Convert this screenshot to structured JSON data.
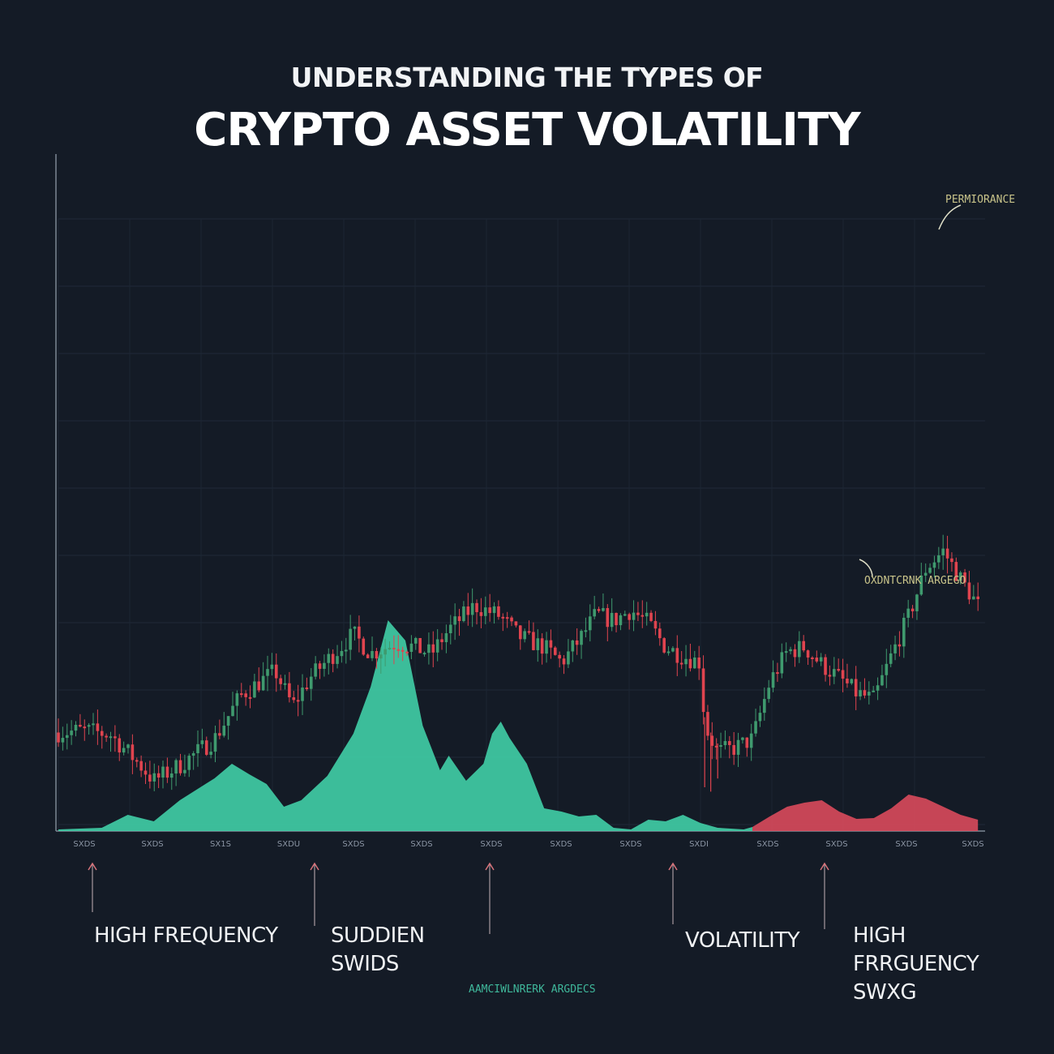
{
  "title": {
    "line1": "UNDERSTANDING THE TYPES OF",
    "line2": "CRYPTO ASSET VOLATILITY"
  },
  "annotations": {
    "top_right": "PERMIORANCE",
    "mid_right": "OXDNTCRNK ARGEGO",
    "bottom": "AAMCIWLNRERK ARGDECS"
  },
  "categories": [
    {
      "label": "HIGH FREQUENCY"
    },
    {
      "label": "SUDDIEN\nSWIDS"
    },
    {
      "label": "VOLATILITY"
    },
    {
      "label": "HIGH\nFRRGUENCY\nSWXG"
    }
  ],
  "colors": {
    "background": "#141b26",
    "up": "#3f9a6e",
    "down": "#e0444f",
    "volume_teal": "#3fc9a4",
    "volume_red": "#d94a5c",
    "arrow": "#d9727a"
  },
  "chart_data": {
    "type": "candlestick",
    "grid": true,
    "x_tick_labels": [
      "SXDS",
      "SXDS",
      "SX1S",
      "SXDU",
      "SXDS",
      "SXDS",
      "SXDS",
      "SXDS",
      "SXDS",
      "SXDI",
      "SXDS",
      "SXDS",
      "SXDS",
      "SXDS"
    ],
    "price_path": [
      [
        0,
        45
      ],
      [
        0.03,
        46
      ],
      [
        0.06,
        44
      ],
      [
        0.09,
        32
      ],
      [
        0.11,
        23
      ],
      [
        0.14,
        30
      ],
      [
        0.18,
        42
      ],
      [
        0.21,
        62
      ],
      [
        0.25,
        73
      ],
      [
        0.27,
        57
      ],
      [
        0.29,
        70
      ],
      [
        0.32,
        82
      ],
      [
        0.34,
        90
      ],
      [
        0.36,
        81
      ],
      [
        0.39,
        86
      ],
      [
        0.41,
        84
      ],
      [
        0.43,
        81
      ],
      [
        0.45,
        92
      ],
      [
        0.48,
        103
      ],
      [
        0.51,
        98
      ],
      [
        0.53,
        89
      ],
      [
        0.56,
        84
      ],
      [
        0.58,
        77
      ],
      [
        0.6,
        87
      ],
      [
        0.62,
        99
      ],
      [
        0.64,
        96
      ],
      [
        0.66,
        101
      ],
      [
        0.68,
        95
      ],
      [
        0.7,
        84
      ],
      [
        0.72,
        80
      ],
      [
        0.74,
        77
      ],
      [
        0.745,
        48
      ],
      [
        0.76,
        36
      ],
      [
        0.78,
        38
      ],
      [
        0.8,
        42
      ],
      [
        0.82,
        68
      ],
      [
        0.84,
        82
      ],
      [
        0.86,
        84
      ],
      [
        0.88,
        76
      ],
      [
        0.9,
        70
      ],
      [
        0.92,
        63
      ],
      [
        0.94,
        60
      ],
      [
        0.96,
        80
      ],
      [
        0.98,
        98
      ],
      [
        1.0,
        120
      ],
      [
        1.02,
        128
      ],
      [
        1.04,
        115
      ],
      [
        1.06,
        103
      ]
    ],
    "volume_profile": [
      [
        0,
        2
      ],
      [
        0.05,
        4
      ],
      [
        0.08,
        20
      ],
      [
        0.11,
        12
      ],
      [
        0.14,
        38
      ],
      [
        0.18,
        65
      ],
      [
        0.2,
        83
      ],
      [
        0.22,
        70
      ],
      [
        0.24,
        58
      ],
      [
        0.26,
        30
      ],
      [
        0.28,
        38
      ],
      [
        0.31,
        68
      ],
      [
        0.34,
        120
      ],
      [
        0.36,
        178
      ],
      [
        0.38,
        260
      ],
      [
        0.4,
        235
      ],
      [
        0.42,
        130
      ],
      [
        0.44,
        75
      ],
      [
        0.45,
        93
      ],
      [
        0.47,
        62
      ],
      [
        0.49,
        83
      ],
      [
        0.5,
        120
      ],
      [
        0.51,
        135
      ],
      [
        0.52,
        115
      ],
      [
        0.54,
        83
      ],
      [
        0.56,
        28
      ],
      [
        0.58,
        24
      ],
      [
        0.6,
        18
      ],
      [
        0.62,
        20
      ],
      [
        0.64,
        4
      ],
      [
        0.66,
        2
      ],
      [
        0.68,
        14
      ],
      [
        0.7,
        12
      ],
      [
        0.72,
        20
      ],
      [
        0.74,
        10
      ],
      [
        0.76,
        4
      ],
      [
        0.79,
        2
      ],
      [
        0.8,
        5
      ],
      [
        0.82,
        18
      ],
      [
        0.84,
        30
      ],
      [
        0.86,
        35
      ],
      [
        0.88,
        38
      ],
      [
        0.9,
        24
      ],
      [
        0.92,
        15
      ],
      [
        0.94,
        16
      ],
      [
        0.96,
        28
      ],
      [
        0.98,
        45
      ],
      [
        1.0,
        40
      ],
      [
        1.02,
        30
      ],
      [
        1.04,
        20
      ],
      [
        1.06,
        14
      ]
    ],
    "volume_color_split": 0.8
  }
}
